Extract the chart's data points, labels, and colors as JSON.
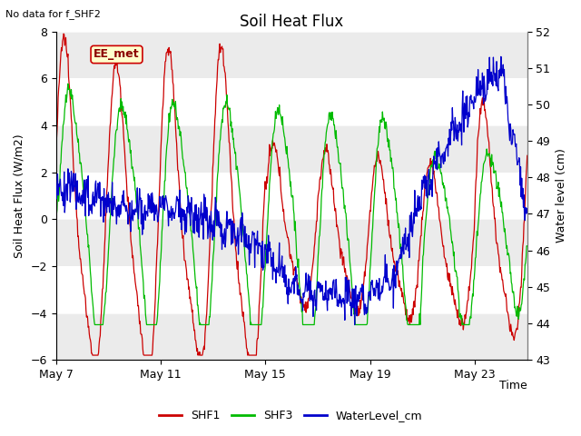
{
  "title": "Soil Heat Flux",
  "subtitle": "No data for f_SHF2",
  "xlabel": "Time",
  "ylabel_left": "Soil Heat Flux (W/m2)",
  "ylabel_right": "Water level (cm)",
  "ylim_left": [
    -6,
    8
  ],
  "ylim_right": [
    43.0,
    52.0
  ],
  "yticks_left": [
    -6,
    -4,
    -2,
    0,
    2,
    4,
    6,
    8
  ],
  "yticks_right": [
    43.0,
    44.0,
    45.0,
    46.0,
    47.0,
    48.0,
    49.0,
    50.0,
    51.0,
    52.0
  ],
  "xtick_labels": [
    "May 7",
    "May 11",
    "May 15",
    "May 19",
    "May 23"
  ],
  "xtick_pos": [
    0,
    4,
    8,
    12,
    16
  ],
  "xlim": [
    0,
    18
  ],
  "annotation": "EE_met",
  "colors": {
    "SHF1": "#cc0000",
    "SHF3": "#00bb00",
    "WaterLevel": "#0000cc",
    "band_light": "#ebebeb",
    "annotation_bg": "#ffffcc",
    "annotation_border": "#cc0000"
  },
  "legend_labels": [
    "SHF1",
    "SHF3",
    "WaterLevel_cm"
  ],
  "figsize": [
    6.4,
    4.8
  ],
  "dpi": 100
}
